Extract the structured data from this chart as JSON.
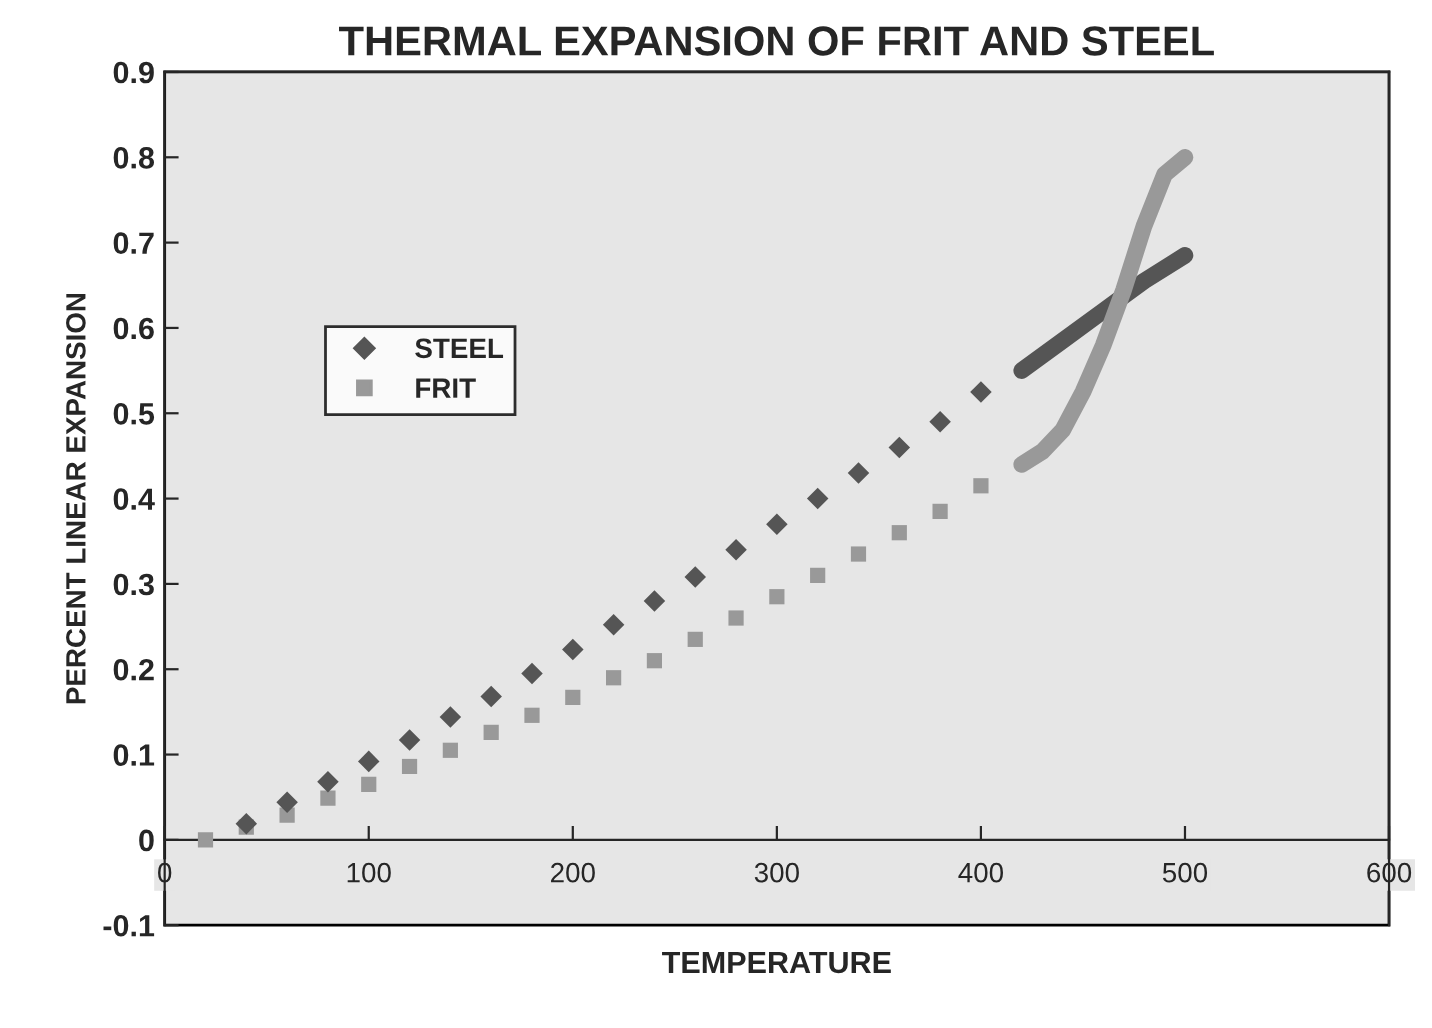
{
  "chart_data": {
    "type": "scatter",
    "title": "THERMAL EXPANSION OF FRIT AND STEEL",
    "xlabel": "TEMPERATURE",
    "ylabel": "PERCENT LINEAR EXPANSION",
    "xlim": [
      0,
      600
    ],
    "xticks": [
      0,
      100,
      200,
      300,
      400,
      500,
      600
    ],
    "ylim": [
      -0.1,
      0.9
    ],
    "yticks": [
      -0.1,
      0,
      0.1,
      0.2,
      0.3,
      0.4,
      0.5,
      0.6,
      0.7,
      0.8,
      0.9
    ],
    "grid": false,
    "legend": "center left",
    "series": [
      {
        "name": "STEEL",
        "marker": "diamond",
        "color": "#555555",
        "x": [
          40,
          60,
          80,
          100,
          120,
          140,
          160,
          180,
          200,
          220,
          240,
          260,
          280,
          300,
          320,
          340,
          360,
          380,
          400
        ],
        "values": [
          0.019,
          0.044,
          0.068,
          0.092,
          0.117,
          0.144,
          0.168,
          0.195,
          0.223,
          0.252,
          0.28,
          0.308,
          0.34,
          0.37,
          0.4,
          0.43,
          0.46,
          0.49,
          0.525
        ]
      },
      {
        "name": "FRIT",
        "marker": "square",
        "color": "#999999",
        "x": [
          20,
          40,
          60,
          80,
          100,
          120,
          140,
          160,
          180,
          200,
          220,
          240,
          260,
          280,
          300,
          320,
          340,
          360,
          380,
          400
        ],
        "values": [
          0,
          0.015,
          0.029,
          0.049,
          0.065,
          0.086,
          0.105,
          0.126,
          0.146,
          0.167,
          0.19,
          0.21,
          0.235,
          0.26,
          0.285,
          0.31,
          0.335,
          0.36,
          0.385,
          0.415
        ]
      },
      {
        "type": "line",
        "color": "#555555",
        "x": [
          420,
          440,
          460,
          480,
          500
        ],
        "values": [
          0.55,
          0.585,
          0.62,
          0.655,
          0.685
        ]
      },
      {
        "type": "line",
        "color": "#999999",
        "x": [
          420,
          430,
          440,
          450,
          460,
          470,
          480,
          490,
          500
        ],
        "values": [
          0.44,
          0.455,
          0.48,
          0.525,
          0.58,
          0.645,
          0.72,
          0.78,
          0.8
        ]
      }
    ]
  }
}
